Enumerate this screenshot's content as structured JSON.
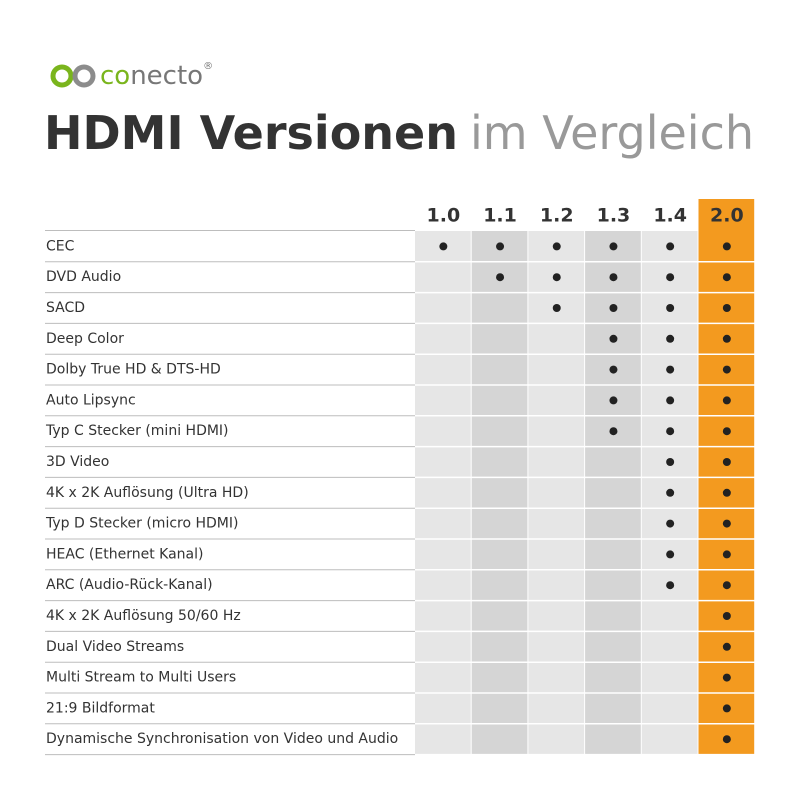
{
  "logo": {
    "prefix": "co",
    "suffix": "necto",
    "mark": "®"
  },
  "title": {
    "bold": "HDMI Versionen",
    "light": "im Vergleich"
  },
  "table": {
    "columns": [
      "1.0",
      "1.1",
      "1.2",
      "1.3",
      "1.4",
      "2.0"
    ],
    "highlight_column": 5,
    "rows": [
      {
        "feature": "CEC",
        "support": [
          true,
          true,
          true,
          true,
          true,
          true
        ]
      },
      {
        "feature": "DVD Audio",
        "support": [
          false,
          true,
          true,
          true,
          true,
          true
        ]
      },
      {
        "feature": "SACD",
        "support": [
          false,
          false,
          true,
          true,
          true,
          true
        ]
      },
      {
        "feature": "Deep Color",
        "support": [
          false,
          false,
          false,
          true,
          true,
          true
        ]
      },
      {
        "feature": "Dolby True HD & DTS-HD",
        "support": [
          false,
          false,
          false,
          true,
          true,
          true
        ]
      },
      {
        "feature": "Auto Lipsync",
        "support": [
          false,
          false,
          false,
          true,
          true,
          true
        ]
      },
      {
        "feature": "Typ C Stecker (mini HDMI)",
        "support": [
          false,
          false,
          false,
          true,
          true,
          true
        ]
      },
      {
        "feature": "3D Video",
        "support": [
          false,
          false,
          false,
          false,
          true,
          true
        ]
      },
      {
        "feature": "4K x 2K Auflösung (Ultra HD)",
        "support": [
          false,
          false,
          false,
          false,
          true,
          true
        ]
      },
      {
        "feature": "Typ D Stecker (micro HDMI)",
        "support": [
          false,
          false,
          false,
          false,
          true,
          true
        ]
      },
      {
        "feature": "HEAC (Ethernet Kanal)",
        "support": [
          false,
          false,
          false,
          false,
          true,
          true
        ]
      },
      {
        "feature": "ARC (Audio-Rück-Kanal)",
        "support": [
          false,
          false,
          false,
          false,
          true,
          true
        ]
      },
      {
        "feature": "4K x 2K Auflösung 50/60 Hz",
        "support": [
          false,
          false,
          false,
          false,
          false,
          true
        ]
      },
      {
        "feature": "Dual Video Streams",
        "support": [
          false,
          false,
          false,
          false,
          false,
          true
        ]
      },
      {
        "feature": "Multi Stream to Multi Users",
        "support": [
          false,
          false,
          false,
          false,
          false,
          true
        ]
      },
      {
        "feature": "21:9 Bildformat",
        "support": [
          false,
          false,
          false,
          false,
          false,
          true
        ]
      },
      {
        "feature": "Dynamische Synchronisation von Video und Audio",
        "support": [
          false,
          false,
          false,
          false,
          false,
          true
        ]
      }
    ]
  }
}
